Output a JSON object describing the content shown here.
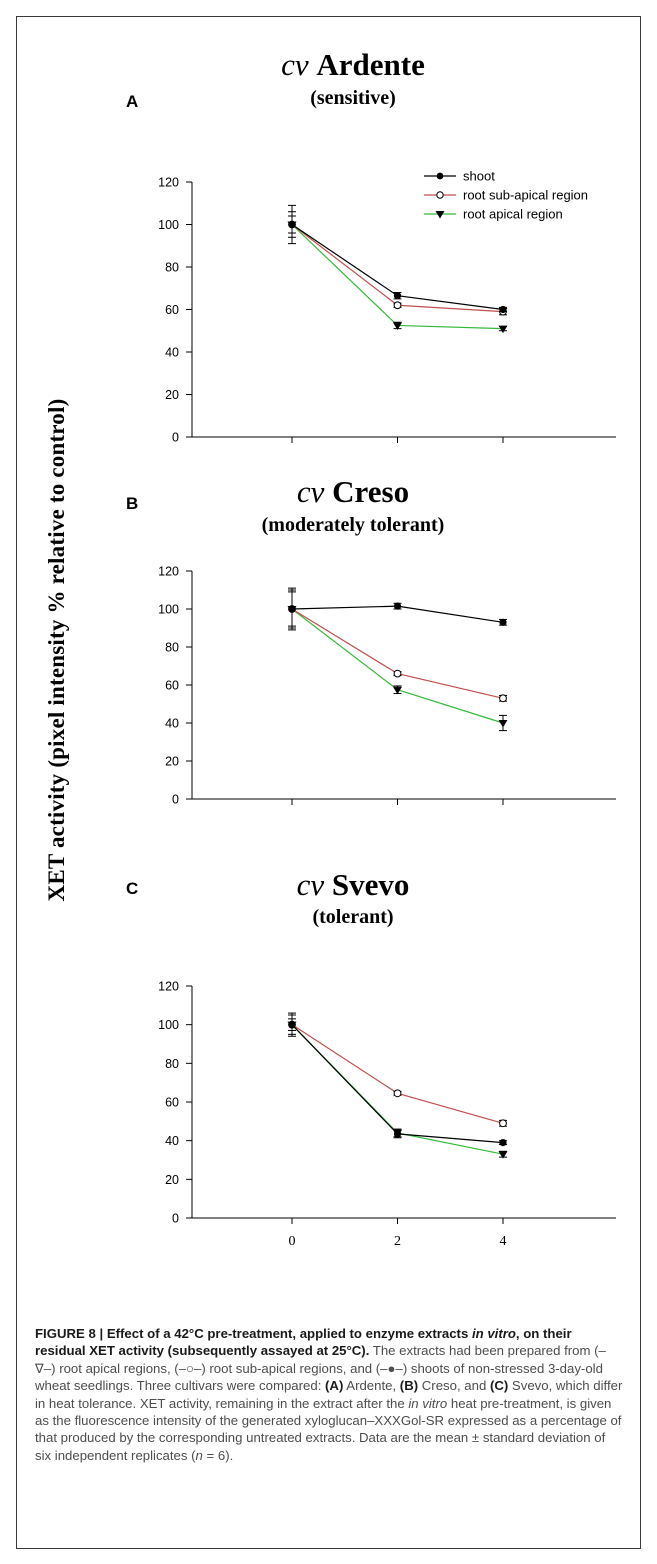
{
  "figure": {
    "ylabel": "XET activity (pixel intensity % relative  to control)"
  },
  "colors": {
    "shoot": "#000000",
    "sub_apical": "#c0504d",
    "apical": "#35b93c"
  },
  "legend": {
    "shoot": "shoot",
    "sub_apical": "root sub-apical region",
    "apical": "root apical region"
  },
  "chart_data": [
    {
      "type": "line",
      "panel": "A",
      "title": "cv Ardente",
      "subtitle": "(sensitive)",
      "x": [
        0,
        2,
        4
      ],
      "yticks": [
        0,
        20,
        40,
        60,
        80,
        100,
        120
      ],
      "ylim": [
        0,
        120
      ],
      "series": [
        {
          "name": "shoot",
          "marker": "filled-circle",
          "values": [
            100,
            66.5,
            60
          ],
          "errors": [
            6,
            1.5,
            1
          ]
        },
        {
          "name": "root sub-apical region",
          "marker": "open-circle",
          "values": [
            100,
            62,
            59
          ],
          "errors": [
            9,
            1,
            1.5
          ]
        },
        {
          "name": "root apical region",
          "marker": "filled-triangle-down",
          "values": [
            100,
            52.5,
            51
          ],
          "errors": [
            4,
            1.5,
            1
          ]
        }
      ]
    },
    {
      "type": "line",
      "panel": "B",
      "title": "cv Creso",
      "subtitle": "(moderately tolerant)",
      "x": [
        0,
        2,
        4
      ],
      "yticks": [
        0,
        20,
        40,
        60,
        80,
        100,
        120
      ],
      "ylim": [
        0,
        120
      ],
      "series": [
        {
          "name": "shoot",
          "values": [
            100,
            101.5,
            93
          ],
          "errors": [
            11,
            1.5,
            1.5
          ]
        },
        {
          "name": "root sub-apical region",
          "values": [
            100,
            66,
            53
          ],
          "errors": [
            10,
            1,
            1.5
          ]
        },
        {
          "name": "root apical region",
          "values": [
            100,
            57.5,
            40
          ],
          "errors": [
            9,
            2,
            4
          ]
        }
      ]
    },
    {
      "type": "line",
      "panel": "C",
      "title": "cv Svevo",
      "subtitle": "(tolerant)",
      "x": [
        0,
        2,
        4
      ],
      "xticks": [
        0,
        2,
        4
      ],
      "yticks": [
        0,
        20,
        40,
        60,
        80,
        100,
        120
      ],
      "ylim": [
        0,
        120
      ],
      "series": [
        {
          "name": "shoot",
          "values": [
            100,
            43.5,
            39
          ],
          "errors": [
            5,
            2,
            1
          ]
        },
        {
          "name": "root sub-apical region",
          "values": [
            100,
            64.5,
            49
          ],
          "errors": [
            6,
            1,
            1.5
          ]
        },
        {
          "name": "root apical region",
          "values": [
            100,
            44,
            33
          ],
          "errors": [
            3,
            2,
            1.5
          ]
        }
      ]
    }
  ],
  "caption": {
    "title": "FIGURE 8 | Effect of a 42°C pre-treatment, applied to enzyme extracts ",
    "title_italic": "in vitro",
    "title_end": ", on their residual XET activity (subsequently assayed at 25°C).",
    "t1": " The extracts had been prepared from (–∇–) root apical regions, (–○–) root sub-apical regions, and (–●–) shoots of non-stressed 3-day-old wheat seedlings. Three cultivars were compared: ",
    "lab_a": "(A)",
    "t2": " Ardente, ",
    "lab_b": "(B)",
    "t3": " Creso, and ",
    "lab_c": "(C)",
    "t4": " Svevo, which differ in heat tolerance. XET activity, remaining in the extract after the ",
    "t4_italic": "in vitro",
    "t5": " heat pre-treatment, is given as the fluorescence intensity of the generated xyloglucan–XXXGol-SR expressed as a percentage of that produced by the corresponding untreated extracts. Data are the mean ± standard deviation of six independent replicates (",
    "t5_italic": "n",
    "t6": " = 6)."
  }
}
